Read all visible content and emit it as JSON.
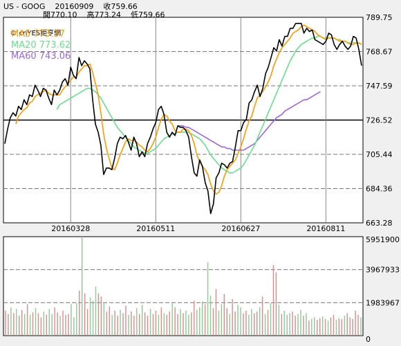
{
  "header": {
    "line1": "US - GOOG    20160909    收759.66",
    "line2": "開770.10    高773.24    低759.66",
    "logo": "cnYES鉅亨網"
  },
  "colors": {
    "background": "#f0f0f0",
    "panel": "#ffffff",
    "price": "#000000",
    "ma5": "#ff9900",
    "ma20": "#66e08c",
    "ma60": "#9966e0",
    "vol_up": "#d98a8a",
    "vol_down": "#8ec88e"
  },
  "chart_data": [
    {
      "type": "line",
      "name": "price",
      "ylim": [
        663.28,
        789.75
      ],
      "yticks": [
        789.75,
        768.67,
        747.59,
        726.52,
        705.44,
        684.36,
        663.28
      ],
      "reference_line": 726.52,
      "xticks": [
        "20160328",
        "20160511",
        "20160627",
        "20160811"
      ],
      "legend": [
        {
          "key": "ma5",
          "text": "MA5 773.37"
        },
        {
          "key": "ma20",
          "text": "MA20 773.62"
        },
        {
          "key": "ma60",
          "text": "MA60 743.06"
        }
      ],
      "series": [
        {
          "key": "price",
          "values": [
            712,
            721,
            728,
            731,
            729,
            735,
            733,
            739,
            736,
            742,
            741,
            748,
            745,
            741,
            746,
            745,
            740,
            736,
            745,
            742,
            745,
            750,
            752,
            748,
            759,
            754,
            752,
            765,
            760,
            763,
            761,
            758,
            739,
            724,
            719,
            711,
            693,
            697,
            697,
            696,
            703,
            712,
            716,
            715,
            717,
            713,
            708,
            716,
            712,
            704,
            707,
            704,
            712,
            716,
            721,
            725,
            733,
            735,
            730,
            719,
            716,
            719,
            717,
            723,
            722,
            722,
            720,
            716,
            704,
            694,
            692,
            702,
            698,
            688,
            683,
            669,
            675,
            691,
            694,
            700,
            699,
            697,
            700,
            701,
            710,
            720,
            720,
            725,
            727,
            737,
            739,
            744,
            748,
            741,
            746,
            755,
            759,
            765,
            771,
            769,
            776,
            772,
            778,
            778,
            783,
            783,
            786,
            786,
            786,
            780,
            783,
            781,
            782,
            776,
            775,
            774,
            773,
            775,
            780,
            779,
            773,
            770,
            773,
            775,
            772,
            770,
            772,
            778,
            777,
            770,
            760
          ]
        },
        {
          "key": "ma5",
          "values": [
            null,
            null,
            null,
            null,
            724,
            729,
            731,
            733,
            734,
            737,
            738,
            741,
            742,
            743,
            744,
            745,
            743,
            742,
            742,
            742,
            742,
            745,
            747,
            749,
            751,
            753,
            753,
            756,
            758,
            760,
            760,
            761,
            756,
            749,
            742,
            731,
            718,
            709,
            703,
            697,
            696,
            700,
            705,
            709,
            713,
            715,
            714,
            714,
            713,
            711,
            710,
            708,
            707,
            709,
            712,
            716,
            722,
            727,
            730,
            729,
            726,
            724,
            720,
            719,
            719,
            721,
            721,
            720,
            717,
            712,
            705,
            701,
            698,
            696,
            693,
            687,
            683,
            681,
            682,
            686,
            692,
            696,
            698,
            700,
            702,
            706,
            710,
            715,
            721,
            726,
            729,
            735,
            740,
            742,
            744,
            747,
            750,
            754,
            760,
            764,
            768,
            771,
            773,
            775,
            777,
            780,
            781,
            782,
            784,
            785,
            784,
            783,
            782,
            781,
            779,
            778,
            777,
            776,
            777,
            777,
            777,
            776,
            775,
            775,
            775,
            774,
            773,
            773,
            774,
            774,
            773
          ]
        },
        {
          "key": "ma20",
          "values": [
            null,
            null,
            null,
            null,
            null,
            null,
            null,
            null,
            null,
            null,
            null,
            null,
            null,
            null,
            null,
            null,
            null,
            null,
            null,
            733,
            736,
            737,
            738,
            739,
            740,
            741,
            742,
            743,
            744,
            745,
            746,
            746,
            745,
            744,
            742,
            740,
            737,
            734,
            731,
            728,
            725,
            722,
            720,
            718,
            716,
            714,
            712,
            710,
            709,
            708,
            707,
            706,
            706,
            707,
            708,
            709,
            711,
            713,
            715,
            716,
            717,
            718,
            718,
            719,
            719,
            719,
            719,
            719,
            718,
            717,
            716,
            715,
            713,
            711,
            708,
            705,
            703,
            701,
            699,
            697,
            696,
            695,
            694,
            694,
            695,
            696,
            697,
            699,
            702,
            705,
            708,
            711,
            715,
            719,
            723,
            727,
            731,
            735,
            739,
            743,
            747,
            751,
            755,
            759,
            763,
            766,
            769,
            771,
            773,
            774,
            775,
            776,
            777,
            777,
            778,
            778,
            777,
            777,
            777,
            777,
            777,
            776,
            776,
            775,
            775,
            774,
            774,
            774,
            774,
            774,
            773
          ]
        },
        {
          "key": "ma60",
          "values": [
            null,
            null,
            null,
            null,
            null,
            null,
            null,
            null,
            null,
            null,
            null,
            null,
            null,
            null,
            null,
            null,
            null,
            null,
            null,
            null,
            null,
            null,
            null,
            null,
            null,
            null,
            null,
            null,
            null,
            null,
            null,
            null,
            null,
            null,
            null,
            null,
            null,
            null,
            null,
            null,
            null,
            null,
            null,
            null,
            null,
            null,
            null,
            null,
            null,
            null,
            null,
            null,
            null,
            null,
            null,
            null,
            null,
            null,
            null,
            null,
            null,
            null,
            null,
            723,
            723,
            723,
            722,
            722,
            721,
            720,
            719,
            718,
            717,
            716,
            715,
            714,
            713,
            712,
            711,
            710,
            710,
            709,
            709,
            708,
            708,
            708,
            708,
            708,
            709,
            710,
            711,
            712,
            714,
            716,
            718,
            720,
            722,
            724,
            726,
            728,
            729,
            730,
            732,
            733,
            734,
            735,
            736,
            737,
            738,
            739,
            739,
            740,
            741,
            742,
            743,
            744
          ]
        }
      ]
    },
    {
      "type": "bar",
      "name": "volume",
      "ylim": [
        0,
        5951900
      ],
      "yticks": [
        5951900,
        3967933,
        1983967,
        0
      ],
      "values": [
        1500000,
        1300000,
        1700000,
        1350000,
        1600000,
        1200000,
        1550000,
        1300000,
        1900000,
        1250000,
        1400000,
        1650000,
        1350000,
        1100000,
        1450000,
        1250000,
        1600000,
        1300000,
        1700000,
        1400000,
        1200000,
        1500000,
        1250000,
        1300000,
        1900000,
        1100000,
        1950000,
        2700000,
        5951900,
        2550000,
        1600000,
        2300000,
        2100000,
        2950000,
        2550000,
        2350000,
        1950000,
        1450000,
        1750000,
        1250000,
        1500000,
        1200000,
        1550000,
        1350000,
        1800000,
        1250000,
        1450000,
        1200000,
        1650000,
        1300000,
        1850000,
        1400000,
        1200000,
        1600000,
        1300000,
        1500000,
        1250000,
        1700000,
        1350000,
        1250000,
        1450000,
        1950000,
        1700000,
        1300000,
        1600000,
        1350000,
        1500000,
        1250000,
        1400000,
        2100000,
        1550000,
        1700000,
        2050000,
        1900000,
        4400000,
        2400000,
        1650000,
        2800000,
        1500000,
        1900000,
        2500000,
        1650000,
        1300000,
        2200000,
        1450000,
        1850000,
        1700000,
        1350000,
        1500000,
        1250000,
        1600000,
        1350000,
        1450000,
        1700000,
        2350000,
        1300000,
        1550000,
        1950000,
        4250000,
        3800000,
        1850000,
        1300000,
        1500000,
        1250000,
        1350000,
        1450000,
        1200000,
        1300000,
        1550000,
        1200000,
        1350000,
        900000,
        1000000,
        1100000,
        950000,
        1050000,
        1150000,
        1000000,
        900000,
        1100000,
        1250000,
        950000,
        1050000,
        1000000,
        1200000,
        1350000,
        1100000,
        1000000,
        1500000,
        1250000,
        1100000
      ],
      "directions": "ddududdudududduduudduddduuududduuuddudduddudduddududduddududdudduduudduuuduudduuddudduudduuddudududduduuudduududuuddududdudduddd"
    }
  ]
}
